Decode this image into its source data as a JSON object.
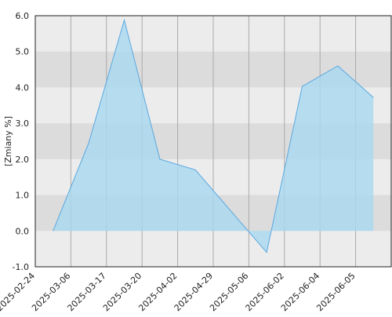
{
  "chart_data": {
    "type": "area",
    "y_label": "[Zmiany %]",
    "x": [
      0.5,
      1.5,
      2.5,
      3.5,
      4.5,
      5.5,
      6.5,
      7.5,
      8.5,
      9.5
    ],
    "series": [
      {
        "color": "#5aa8e0",
        "values": [
          0.0,
          2.45,
          5.88,
          2.0,
          1.7,
          0.55,
          -0.6,
          4.03,
          4.6,
          3.72
        ]
      }
    ],
    "xlim": [
      0,
      10
    ],
    "xticks": [
      {
        "value": 0,
        "label": "2025-02-24"
      },
      {
        "value": 1,
        "label": "2025-03-06"
      },
      {
        "value": 2,
        "label": "2025-03-17"
      },
      {
        "value": 3,
        "label": "2025-03-20"
      },
      {
        "value": 4,
        "label": "2025-04-02"
      },
      {
        "value": 5,
        "label": "2025-04-29"
      },
      {
        "value": 6,
        "label": "2025-05-06"
      },
      {
        "value": 7,
        "label": "2025-06-02"
      },
      {
        "value": 8,
        "label": "2025-06-04"
      },
      {
        "value": 9,
        "label": "2025-06-05"
      }
    ],
    "ylim": [
      -1,
      6
    ],
    "yticks": [
      {
        "value": -1,
        "label": "-1.0"
      },
      {
        "value": 0,
        "label": "0.0"
      },
      {
        "value": 1,
        "label": "1.0"
      },
      {
        "value": 2,
        "label": "2.0"
      },
      {
        "value": 3,
        "label": "3.0"
      },
      {
        "value": 4,
        "label": "4.0"
      },
      {
        "value": 5,
        "label": "5.0"
      },
      {
        "value": 6,
        "label": "6.0"
      }
    ],
    "grid": true
  }
}
